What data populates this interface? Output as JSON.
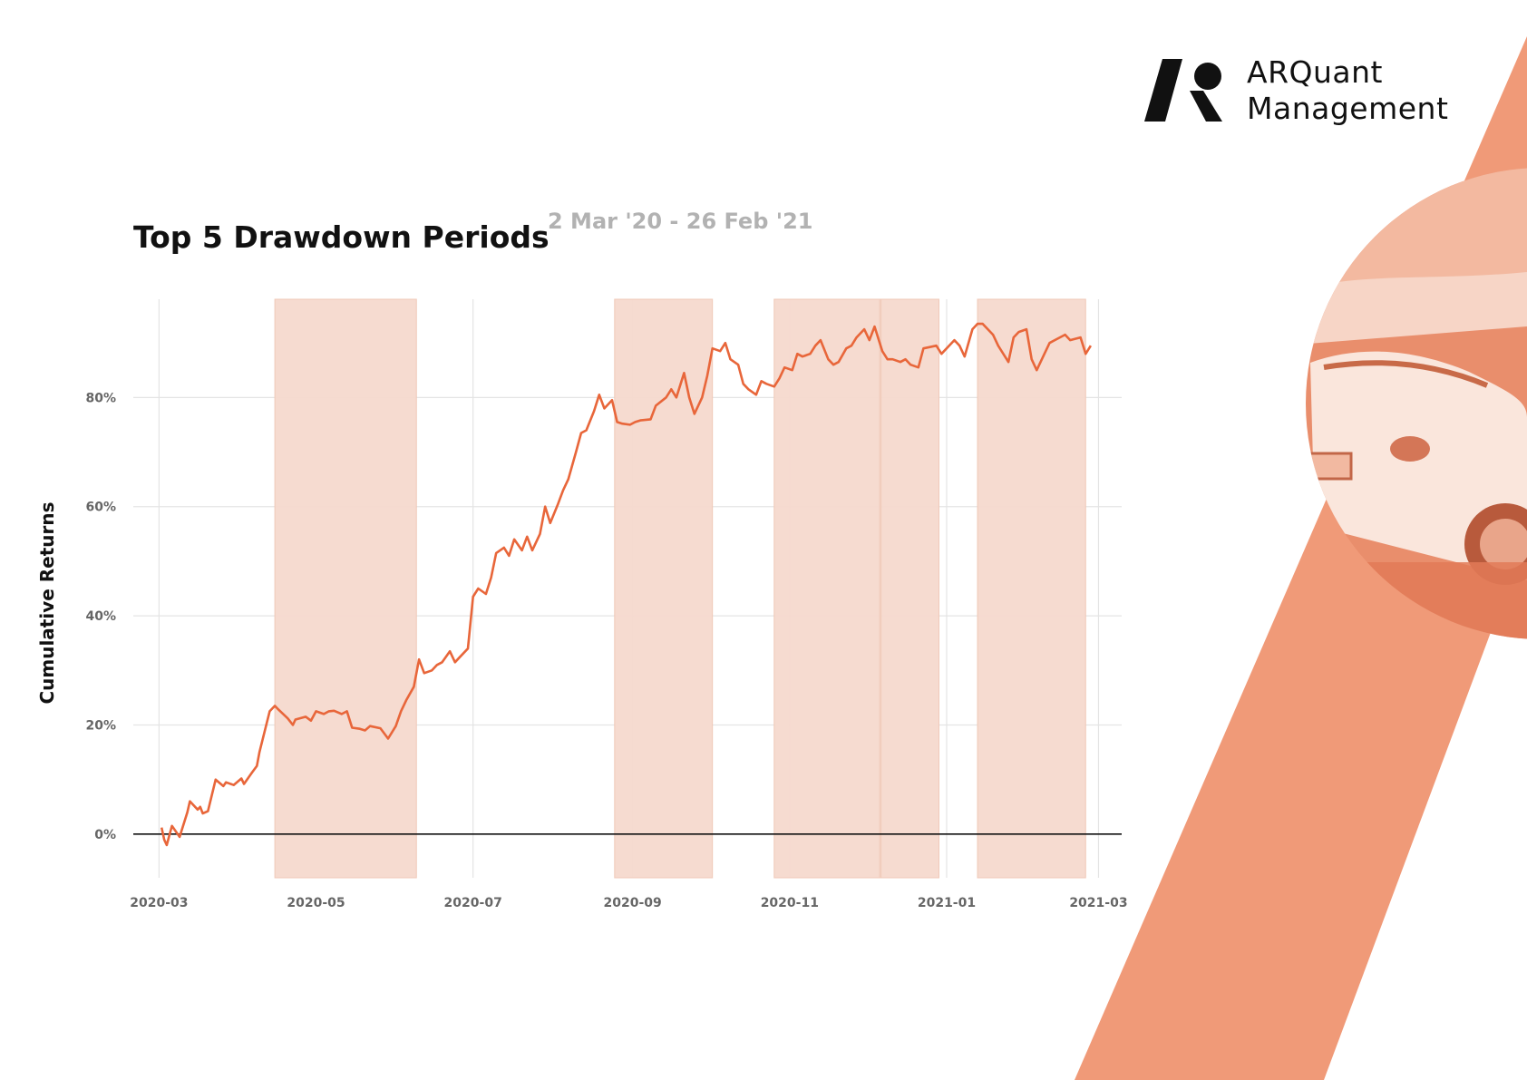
{
  "brand": {
    "name_line1": "ARQuant",
    "name_line2": "Management",
    "accent_color": "#f09a78",
    "line_color": "#e8663a",
    "shade_color": "#f5d9cd"
  },
  "chart_data": {
    "type": "line",
    "title": "Top 5 Drawdown Periods",
    "subtitle": "2 Mar '20 - 26 Feb '21",
    "ylabel": "Cumulative Returns",
    "xlabel": "",
    "x_tick_labels": [
      "2020-03",
      "2020-05",
      "2020-07",
      "2020-09",
      "2020-11",
      "2021-01",
      "2021-03"
    ],
    "y_tick_labels": [
      "0%",
      "20%",
      "40%",
      "60%",
      "80%"
    ],
    "ylim": [
      -8,
      98
    ],
    "grid": true,
    "legend": "none",
    "series": [
      {
        "values_x": [
          "2020-03-02",
          "2020-03-03",
          "2020-03-04",
          "2020-03-06",
          "2020-03-09",
          "2020-03-12",
          "2020-03-13",
          "2020-03-16",
          "2020-03-17",
          "2020-03-18",
          "2020-03-20",
          "2020-03-23",
          "2020-03-26",
          "2020-03-27",
          "2020-03-30",
          "2020-04-02",
          "2020-04-03",
          "2020-04-06",
          "2020-04-08",
          "2020-04-09",
          "2020-04-13",
          "2020-04-15",
          "2020-04-16",
          "2020-04-20",
          "2020-04-22",
          "2020-04-23",
          "2020-04-27",
          "2020-04-29",
          "2020-05-01",
          "2020-05-04",
          "2020-05-06",
          "2020-05-08",
          "2020-05-11",
          "2020-05-13",
          "2020-05-15",
          "2020-05-18",
          "2020-05-20",
          "2020-05-22",
          "2020-05-26",
          "2020-05-29",
          "2020-06-01",
          "2020-06-03",
          "2020-06-05",
          "2020-06-08",
          "2020-06-10",
          "2020-06-12",
          "2020-06-15",
          "2020-06-17",
          "2020-06-19",
          "2020-06-22",
          "2020-06-24",
          "2020-06-26",
          "2020-06-29",
          "2020-07-01",
          "2020-07-03",
          "2020-07-06",
          "2020-07-08",
          "2020-07-10",
          "2020-07-13",
          "2020-07-15",
          "2020-07-17",
          "2020-07-20",
          "2020-07-22",
          "2020-07-24",
          "2020-07-27",
          "2020-07-29",
          "2020-07-31",
          "2020-08-03",
          "2020-08-05",
          "2020-08-07",
          "2020-08-10",
          "2020-08-12",
          "2020-08-14",
          "2020-08-17",
          "2020-08-19",
          "2020-08-21",
          "2020-08-24",
          "2020-08-26",
          "2020-08-28",
          "2020-08-31",
          "2020-09-02",
          "2020-09-04",
          "2020-09-08",
          "2020-09-10",
          "2020-09-14",
          "2020-09-16",
          "2020-09-18",
          "2020-09-21",
          "2020-09-23",
          "2020-09-25",
          "2020-09-28",
          "2020-09-30",
          "2020-10-02",
          "2020-10-05",
          "2020-10-07",
          "2020-10-09",
          "2020-10-12",
          "2020-10-14",
          "2020-10-16",
          "2020-10-19",
          "2020-10-21",
          "2020-10-23",
          "2020-10-26",
          "2020-10-28",
          "2020-10-30",
          "2020-11-02",
          "2020-11-04",
          "2020-11-06",
          "2020-11-09",
          "2020-11-11",
          "2020-11-13",
          "2020-11-16",
          "2020-11-18",
          "2020-11-20",
          "2020-11-23",
          "2020-11-25",
          "2020-11-27",
          "2020-11-30",
          "2020-12-02",
          "2020-12-04",
          "2020-12-07",
          "2020-12-09",
          "2020-12-11",
          "2020-12-14",
          "2020-12-16",
          "2020-12-18",
          "2020-12-21",
          "2020-12-23",
          "2020-12-28",
          "2020-12-30",
          "2021-01-04",
          "2021-01-06",
          "2021-01-08",
          "2021-01-11",
          "2021-01-13",
          "2021-01-15",
          "2021-01-19",
          "2021-01-21",
          "2021-01-25",
          "2021-01-27",
          "2021-01-29",
          "2021-02-01",
          "2021-02-03",
          "2021-02-05",
          "2021-02-08",
          "2021-02-10",
          "2021-02-12",
          "2021-02-16",
          "2021-02-18",
          "2021-02-22",
          "2021-02-24",
          "2021-02-26"
        ],
        "values": [
          1.2,
          -1.0,
          -2.0,
          1.5,
          -0.5,
          4.0,
          6.0,
          4.5,
          5.0,
          3.8,
          4.2,
          10.0,
          8.8,
          9.5,
          9.0,
          10.2,
          9.2,
          11.2,
          12.5,
          15.0,
          22.5,
          23.5,
          23.0,
          21.2,
          20.0,
          21.0,
          21.5,
          20.8,
          22.5,
          22.0,
          22.5,
          22.6,
          22.0,
          22.5,
          19.5,
          19.3,
          19.0,
          19.8,
          19.4,
          17.5,
          19.8,
          22.5,
          24.5,
          27.0,
          32.0,
          29.5,
          30.0,
          31.0,
          31.5,
          33.5,
          31.5,
          32.5,
          34.0,
          43.5,
          45.0,
          44.0,
          47.0,
          51.5,
          52.5,
          51.0,
          54.0,
          52.0,
          54.5,
          52.0,
          55.0,
          60.0,
          57.0,
          60.5,
          63.0,
          65.0,
          70.0,
          73.5,
          74.0,
          77.5,
          80.5,
          78.0,
          79.5,
          75.5,
          75.2,
          75.0,
          75.5,
          75.8,
          76.0,
          78.5,
          80.0,
          81.5,
          80.0,
          84.5,
          80.0,
          77.0,
          80.0,
          84.0,
          89.0,
          88.5,
          90.0,
          87.0,
          86.0,
          82.5,
          81.5,
          80.5,
          83.0,
          82.5,
          82.0,
          83.5,
          85.5,
          85.0,
          88.0,
          87.5,
          88.0,
          89.5,
          90.5,
          87.0,
          86.0,
          86.5,
          89.0,
          89.5,
          91.0,
          92.5,
          90.5,
          93.0,
          88.5,
          87.0,
          87.0,
          86.5,
          87.0,
          86.0,
          85.5,
          89.0,
          89.5,
          88.0,
          90.5,
          89.5,
          87.5,
          92.5,
          93.5,
          93.5,
          91.5,
          89.5,
          86.5,
          91.0,
          92.0,
          92.5,
          87.0,
          85.0,
          88.0,
          90.0,
          90.5,
          91.5,
          90.5,
          91.0,
          88.0,
          89.5,
          93.5
        ]
      }
    ],
    "drawdown_periods": [
      {
        "start": "2020-04-15",
        "end": "2020-06-09"
      },
      {
        "start": "2020-08-25",
        "end": "2020-10-02"
      },
      {
        "start": "2020-10-26",
        "end": "2020-12-29"
      },
      {
        "start": "2021-01-13",
        "end": "2021-02-24"
      },
      {
        "start": "2020-12-06",
        "end": "2020-12-06"
      }
    ]
  }
}
